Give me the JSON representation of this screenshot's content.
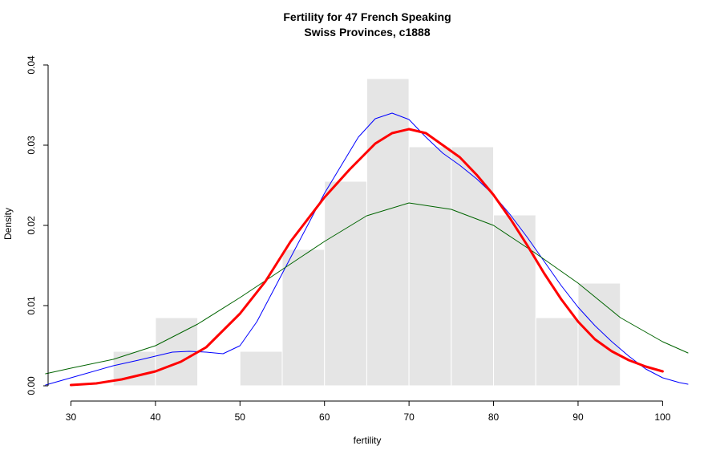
{
  "chart_data": {
    "type": "histogram",
    "title": [
      "Fertility for 47 French Speaking",
      "Swiss Provinces, c1888"
    ],
    "xlabel": "fertility",
    "ylabel": "Density",
    "xlim": [
      27.3,
      103
    ],
    "ylim": [
      -0.0007,
      0.0407
    ],
    "x_ticks": [
      30,
      40,
      50,
      60,
      70,
      80,
      90,
      100
    ],
    "x_tick_labels": [
      "30",
      "40",
      "50",
      "60",
      "70",
      "80",
      "90",
      "100"
    ],
    "y_ticks": [
      0.0,
      0.01,
      0.02,
      0.03,
      0.04
    ],
    "y_tick_labels": [
      "0.00",
      "0.01",
      "0.02",
      "0.03",
      "0.04"
    ],
    "grid": false,
    "colors": {
      "bar_fill": "#e5e5e5",
      "bar_border": "#ffffff",
      "blue_curve": "#0000ff",
      "green_curve": "#006400",
      "red_curve": "#ff0000"
    },
    "histogram": {
      "bins": [
        {
          "start": 35,
          "end": 40,
          "density": 0.0043
        },
        {
          "start": 40,
          "end": 45,
          "density": 0.0085
        },
        {
          "start": 45,
          "end": 50,
          "density": 0.0
        },
        {
          "start": 50,
          "end": 55,
          "density": 0.0043
        },
        {
          "start": 55,
          "end": 60,
          "density": 0.017
        },
        {
          "start": 60,
          "end": 65,
          "density": 0.0255
        },
        {
          "start": 65,
          "end": 70,
          "density": 0.0383
        },
        {
          "start": 70,
          "end": 75,
          "density": 0.0298
        },
        {
          "start": 75,
          "end": 80,
          "density": 0.0298
        },
        {
          "start": 80,
          "end": 85,
          "density": 0.0213
        },
        {
          "start": 85,
          "end": 90,
          "density": 0.0085
        },
        {
          "start": 90,
          "end": 95,
          "density": 0.0128
        }
      ]
    },
    "series": [
      {
        "color": "blue",
        "line_width": 1,
        "x": [
          27,
          30,
          35,
          38,
          40,
          42,
          44,
          46,
          48,
          50,
          52,
          54,
          56,
          58,
          60,
          62,
          64,
          66,
          68,
          70,
          72,
          74,
          76,
          78,
          80,
          82,
          84,
          86,
          88,
          90,
          92,
          94,
          96,
          98,
          100,
          102,
          103
        ],
        "y": [
          0.0001,
          0.001,
          0.0025,
          0.0032,
          0.0037,
          0.0042,
          0.0043,
          0.0042,
          0.004,
          0.005,
          0.008,
          0.012,
          0.016,
          0.02,
          0.024,
          0.0275,
          0.031,
          0.0333,
          0.034,
          0.0332,
          0.031,
          0.029,
          0.0275,
          0.0258,
          0.0238,
          0.0213,
          0.0185,
          0.0155,
          0.0125,
          0.0098,
          0.0075,
          0.0055,
          0.0037,
          0.0021,
          0.001,
          0.0004,
          0.0002
        ]
      },
      {
        "color": "darkgreen",
        "line_width": 1,
        "x": [
          27,
          30,
          35,
          40,
          45,
          50,
          55,
          60,
          65,
          70,
          75,
          80,
          85,
          90,
          95,
          100,
          103
        ],
        "y": [
          0.0015,
          0.0022,
          0.0033,
          0.005,
          0.0077,
          0.011,
          0.0145,
          0.018,
          0.0212,
          0.0228,
          0.022,
          0.02,
          0.0165,
          0.0128,
          0.0085,
          0.0055,
          0.0041
        ]
      },
      {
        "color": "red",
        "line_width": 3,
        "x": [
          30,
          33,
          36,
          40,
          43,
          46,
          50,
          53,
          56,
          60,
          63,
          66,
          68,
          70,
          72,
          74,
          76,
          78,
          80,
          82,
          84,
          86,
          88,
          90,
          92,
          94,
          96,
          98,
          100
        ],
        "y": [
          0.0001,
          0.0003,
          0.0008,
          0.0018,
          0.003,
          0.0048,
          0.009,
          0.013,
          0.018,
          0.0235,
          0.027,
          0.0302,
          0.0315,
          0.032,
          0.0315,
          0.03,
          0.0285,
          0.0263,
          0.0238,
          0.0208,
          0.0175,
          0.014,
          0.0108,
          0.008,
          0.0058,
          0.0043,
          0.0032,
          0.0024,
          0.0018
        ]
      }
    ]
  }
}
